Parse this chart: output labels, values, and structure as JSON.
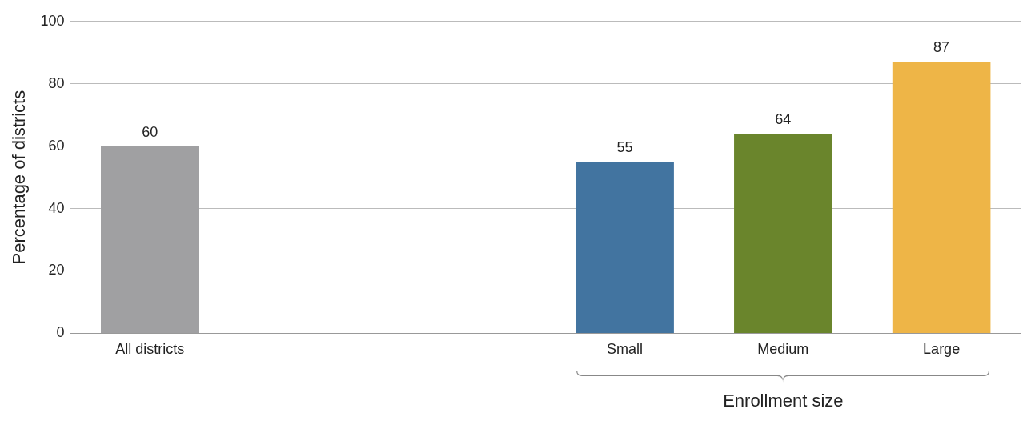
{
  "chart_data": {
    "type": "bar",
    "ylabel": "Percentage of districts",
    "xlabel": "Enrollment size",
    "categories": [
      "All districts",
      null,
      null,
      "Small",
      "Medium",
      "Large"
    ],
    "values": [
      60,
      null,
      null,
      55,
      64,
      87
    ],
    "colors": [
      "#a0a0a2",
      null,
      null,
      "#4274a0",
      "#6a852c",
      "#eeb547"
    ],
    "ylim": [
      0,
      100
    ],
    "yticks": [
      0,
      20,
      40,
      60,
      80,
      100
    ],
    "grid": "y",
    "data_labels": true,
    "legend": false
  }
}
